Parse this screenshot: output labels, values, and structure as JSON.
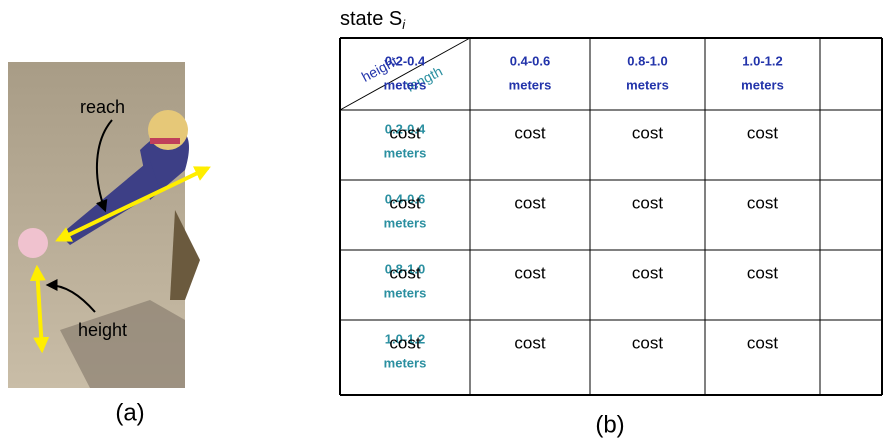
{
  "figure_a": {
    "labels": {
      "reach": "reach",
      "height": "height"
    },
    "caption": "(a)"
  },
  "figure_b": {
    "title": {
      "text": "state S",
      "subscript": "i"
    },
    "corner": {
      "row_label": "height",
      "column_label": "length"
    },
    "columns": [
      [
        "0.2-0.4",
        "meters"
      ],
      [
        "0.4-0.6",
        "meters"
      ],
      [
        "0.8-1.0",
        "meters"
      ],
      [
        "1.0-1.2",
        "meters"
      ]
    ],
    "rows": [
      {
        "header": [
          "0.2-0.4",
          "meters"
        ],
        "cells": [
          "cost",
          "cost",
          "cost",
          "cost"
        ]
      },
      {
        "header": [
          "0.4-0.6",
          "meters"
        ],
        "cells": [
          "cost",
          "cost",
          "cost",
          "cost"
        ]
      },
      {
        "header": [
          "0.8-1.0",
          "meters"
        ],
        "cells": [
          "cost",
          "cost",
          "cost",
          "cost"
        ]
      },
      {
        "header": [
          "1.0-1.2",
          "meters"
        ],
        "cells": [
          "cost",
          "cost",
          "cost",
          "cost"
        ]
      }
    ],
    "caption": "(b)"
  }
}
